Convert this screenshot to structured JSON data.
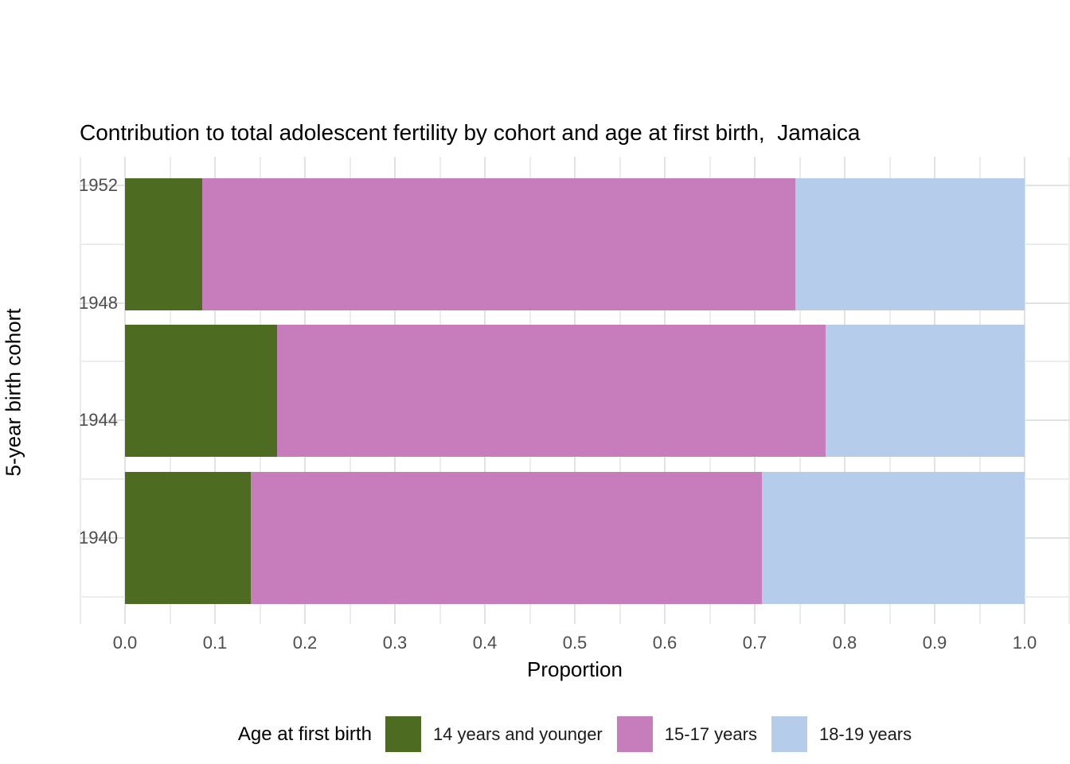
{
  "chart_data": {
    "type": "bar",
    "orientation": "horizontal",
    "stacked": true,
    "normalized": true,
    "title": "Contribution to total adolescent fertility by cohort and age at first birth,  Jamaica",
    "xlabel": "Proportion",
    "ylabel": "5-year birth cohort",
    "xlim": [
      0,
      1
    ],
    "x_ticks": [
      "0.0",
      "0.1",
      "0.2",
      "0.3",
      "0.4",
      "0.5",
      "0.6",
      "0.7",
      "0.8",
      "0.9",
      "1.0"
    ],
    "y_ticks": [
      "1952",
      "1948",
      "1944",
      "1940"
    ],
    "categories": [
      1950,
      1945,
      1940
    ],
    "bar_width_years": 4.5,
    "grid": true,
    "legend_title": "Age at first birth",
    "legend_position": "bottom",
    "series": [
      {
        "name": "14 years and younger",
        "color": "#4d6b21",
        "values": [
          0.086,
          0.169,
          0.14
        ]
      },
      {
        "name": "15-17 years",
        "color": "#c77cbb",
        "values": [
          0.659,
          0.61,
          0.568
        ]
      },
      {
        "name": "18-19 years",
        "color": "#b5cdeb",
        "values": [
          0.255,
          0.221,
          0.292
        ]
      }
    ]
  }
}
